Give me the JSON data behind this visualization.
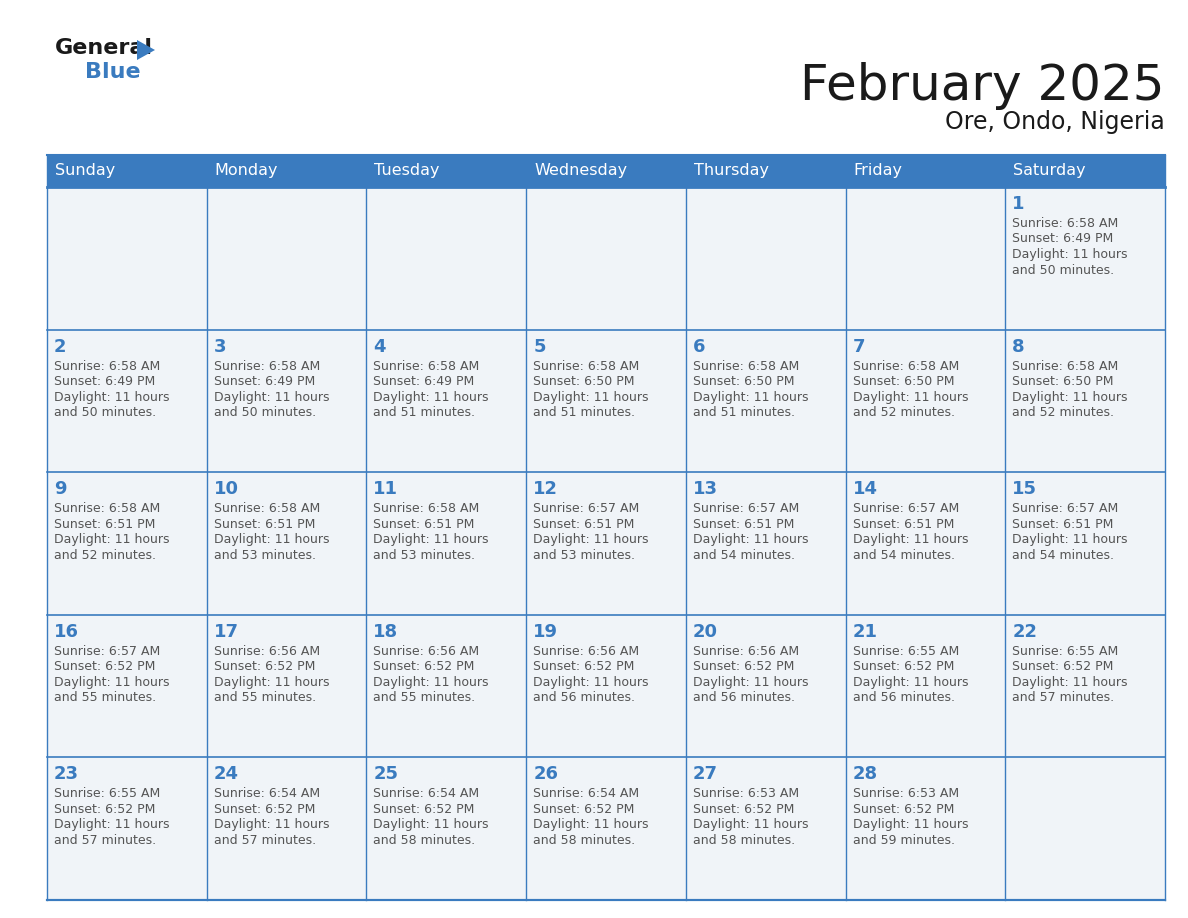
{
  "title": "February 2025",
  "subtitle": "Ore, Ondo, Nigeria",
  "header_bg": "#3a7bbf",
  "header_text": "#ffffff",
  "cell_bg": "#f0f4f8",
  "border_color": "#3a7bbf",
  "day_names": [
    "Sunday",
    "Monday",
    "Tuesday",
    "Wednesday",
    "Thursday",
    "Friday",
    "Saturday"
  ],
  "title_color": "#1a1a1a",
  "subtitle_color": "#1a1a1a",
  "day_num_color": "#3a7bbf",
  "text_color": "#555555",
  "calendar": [
    [
      null,
      null,
      null,
      null,
      null,
      null,
      {
        "day": 1,
        "sunrise": "6:58 AM",
        "sunset": "6:49 PM",
        "daylight": "11 hours and 50 minutes."
      }
    ],
    [
      {
        "day": 2,
        "sunrise": "6:58 AM",
        "sunset": "6:49 PM",
        "daylight": "11 hours and 50 minutes."
      },
      {
        "day": 3,
        "sunrise": "6:58 AM",
        "sunset": "6:49 PM",
        "daylight": "11 hours and 50 minutes."
      },
      {
        "day": 4,
        "sunrise": "6:58 AM",
        "sunset": "6:49 PM",
        "daylight": "11 hours and 51 minutes."
      },
      {
        "day": 5,
        "sunrise": "6:58 AM",
        "sunset": "6:50 PM",
        "daylight": "11 hours and 51 minutes."
      },
      {
        "day": 6,
        "sunrise": "6:58 AM",
        "sunset": "6:50 PM",
        "daylight": "11 hours and 51 minutes."
      },
      {
        "day": 7,
        "sunrise": "6:58 AM",
        "sunset": "6:50 PM",
        "daylight": "11 hours and 52 minutes."
      },
      {
        "day": 8,
        "sunrise": "6:58 AM",
        "sunset": "6:50 PM",
        "daylight": "11 hours and 52 minutes."
      }
    ],
    [
      {
        "day": 9,
        "sunrise": "6:58 AM",
        "sunset": "6:51 PM",
        "daylight": "11 hours and 52 minutes."
      },
      {
        "day": 10,
        "sunrise": "6:58 AM",
        "sunset": "6:51 PM",
        "daylight": "11 hours and 53 minutes."
      },
      {
        "day": 11,
        "sunrise": "6:58 AM",
        "sunset": "6:51 PM",
        "daylight": "11 hours and 53 minutes."
      },
      {
        "day": 12,
        "sunrise": "6:57 AM",
        "sunset": "6:51 PM",
        "daylight": "11 hours and 53 minutes."
      },
      {
        "day": 13,
        "sunrise": "6:57 AM",
        "sunset": "6:51 PM",
        "daylight": "11 hours and 54 minutes."
      },
      {
        "day": 14,
        "sunrise": "6:57 AM",
        "sunset": "6:51 PM",
        "daylight": "11 hours and 54 minutes."
      },
      {
        "day": 15,
        "sunrise": "6:57 AM",
        "sunset": "6:51 PM",
        "daylight": "11 hours and 54 minutes."
      }
    ],
    [
      {
        "day": 16,
        "sunrise": "6:57 AM",
        "sunset": "6:52 PM",
        "daylight": "11 hours and 55 minutes."
      },
      {
        "day": 17,
        "sunrise": "6:56 AM",
        "sunset": "6:52 PM",
        "daylight": "11 hours and 55 minutes."
      },
      {
        "day": 18,
        "sunrise": "6:56 AM",
        "sunset": "6:52 PM",
        "daylight": "11 hours and 55 minutes."
      },
      {
        "day": 19,
        "sunrise": "6:56 AM",
        "sunset": "6:52 PM",
        "daylight": "11 hours and 56 minutes."
      },
      {
        "day": 20,
        "sunrise": "6:56 AM",
        "sunset": "6:52 PM",
        "daylight": "11 hours and 56 minutes."
      },
      {
        "day": 21,
        "sunrise": "6:55 AM",
        "sunset": "6:52 PM",
        "daylight": "11 hours and 56 minutes."
      },
      {
        "day": 22,
        "sunrise": "6:55 AM",
        "sunset": "6:52 PM",
        "daylight": "11 hours and 57 minutes."
      }
    ],
    [
      {
        "day": 23,
        "sunrise": "6:55 AM",
        "sunset": "6:52 PM",
        "daylight": "11 hours and 57 minutes."
      },
      {
        "day": 24,
        "sunrise": "6:54 AM",
        "sunset": "6:52 PM",
        "daylight": "11 hours and 57 minutes."
      },
      {
        "day": 25,
        "sunrise": "6:54 AM",
        "sunset": "6:52 PM",
        "daylight": "11 hours and 58 minutes."
      },
      {
        "day": 26,
        "sunrise": "6:54 AM",
        "sunset": "6:52 PM",
        "daylight": "11 hours and 58 minutes."
      },
      {
        "day": 27,
        "sunrise": "6:53 AM",
        "sunset": "6:52 PM",
        "daylight": "11 hours and 58 minutes."
      },
      {
        "day": 28,
        "sunrise": "6:53 AM",
        "sunset": "6:52 PM",
        "daylight": "11 hours and 59 minutes."
      },
      null
    ]
  ]
}
